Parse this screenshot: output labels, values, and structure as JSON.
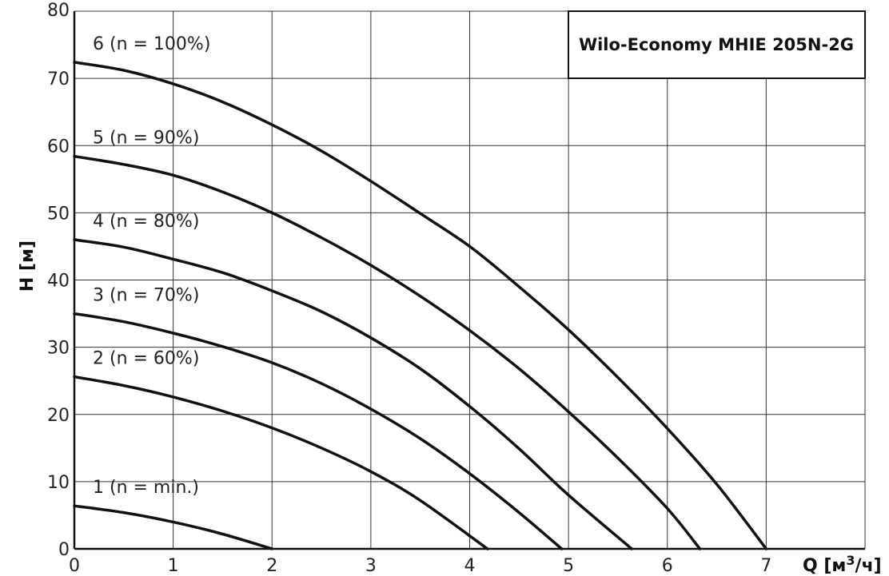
{
  "chart_data": {
    "type": "line",
    "title": "Wilo-Economy MHIE 205N-2G",
    "xlabel": "Q [м3/ч]",
    "xlabel_parts": {
      "main": "Q [м",
      "sup": "3",
      "tail": "/ч]"
    },
    "ylabel": "H [м]",
    "xlim": [
      0,
      8
    ],
    "ylim": [
      0,
      80
    ],
    "xticks": [
      "0",
      "1",
      "2",
      "3",
      "4",
      "5",
      "6",
      "7"
    ],
    "yticks": [
      "0",
      "10",
      "20",
      "30",
      "40",
      "50",
      "60",
      "70",
      "80"
    ],
    "grid": true,
    "series": [
      {
        "name": "1 (n = min.)",
        "x": [
          0,
          0.5,
          1,
          1.5,
          2.0
        ],
        "y": [
          6.4,
          5.4,
          4.0,
          2.2,
          0
        ]
      },
      {
        "name": "2 (n = 60%)",
        "x": [
          0,
          0.5,
          1,
          1.5,
          2,
          2.5,
          3,
          3.5,
          4.18
        ],
        "y": [
          25.6,
          24.3,
          22.6,
          20.5,
          18.0,
          15.0,
          11.5,
          7.2,
          0
        ]
      },
      {
        "name": "3 (n = 70%)",
        "x": [
          0,
          0.5,
          1,
          1.5,
          2,
          2.5,
          3,
          3.5,
          4,
          4.5,
          4.93
        ],
        "y": [
          35.0,
          33.8,
          32.1,
          30.1,
          27.7,
          24.6,
          20.8,
          16.4,
          11.2,
          5.4,
          0
        ]
      },
      {
        "name": "4 (n = 80%)",
        "x": [
          0,
          0.5,
          1,
          1.5,
          2,
          2.5,
          3,
          3.5,
          4,
          4.5,
          5,
          5.64
        ],
        "y": [
          46.0,
          44.9,
          43.1,
          41.1,
          38.4,
          35.3,
          31.4,
          26.8,
          21.2,
          14.9,
          8.0,
          0
        ]
      },
      {
        "name": "5 (n = 90%)",
        "x": [
          0,
          0.5,
          1,
          1.5,
          2,
          2.5,
          3,
          3.5,
          4,
          4.5,
          5,
          5.5,
          6,
          6.33
        ],
        "y": [
          58.4,
          57.2,
          55.6,
          53.1,
          50.0,
          46.3,
          42.2,
          37.6,
          32.5,
          26.8,
          20.4,
          13.5,
          6.0,
          0
        ]
      },
      {
        "name": "6 (n = 100%)",
        "x": [
          0,
          0.5,
          1,
          1.5,
          2,
          2.5,
          3,
          3.5,
          4,
          4.5,
          5,
          5.5,
          6,
          6.5,
          7.0
        ],
        "y": [
          72.4,
          71.2,
          69.2,
          66.5,
          63.1,
          59.2,
          54.7,
          49.9,
          45.0,
          39.0,
          32.6,
          25.5,
          17.9,
          9.6,
          0
        ]
      }
    ]
  }
}
